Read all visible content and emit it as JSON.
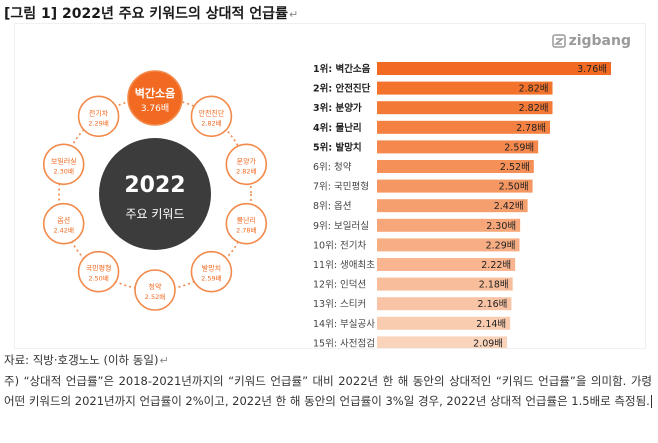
{
  "title": "[그림 1] 2022년 주요 키워드의 상대적 언급률",
  "return_mark": "↵",
  "logo": {
    "text": "zigbang",
    "icon": "zigbang-logo-icon",
    "color": "#9a9a9a"
  },
  "center": {
    "year": "2022",
    "label": "주요 키워드",
    "color": "#3c3c3c"
  },
  "colors": {
    "accent": "#f26a21",
    "ring": "#f28a4c",
    "bar_dark": "#f26a21",
    "bar_light": "#fad3bb"
  },
  "chart_data": {
    "type": "bar",
    "orientation": "horizontal",
    "unit": "배",
    "categories": [
      "1위: 벽간소음",
      "2위: 안전진단",
      "3위: 분양가",
      "4위: 물난리",
      "5위: 발망치",
      "6위: 청약",
      "7위: 국민평형",
      "8위: 옵션",
      "9위: 보일러실",
      "10위: 전기차",
      "11위: 생애최초",
      "12위: 인덕션",
      "13위: 스티커",
      "14위: 부실공사",
      "15위: 사전점검"
    ],
    "values": [
      3.76,
      2.82,
      2.82,
      2.78,
      2.59,
      2.52,
      2.5,
      2.42,
      2.3,
      2.29,
      2.22,
      2.18,
      2.16,
      2.14,
      2.09
    ],
    "value_labels": [
      "3.76배",
      "2.82배",
      "2.82배",
      "2.78배",
      "2.59배",
      "2.52배",
      "2.50배",
      "2.42배",
      "2.30배",
      "2.29배",
      "2.22배",
      "2.18배",
      "2.16배",
      "2.14배",
      "2.09배"
    ],
    "xlim": [
      0,
      3.76
    ],
    "bold_top": 5
  },
  "ring": [
    {
      "label": "벽간소음",
      "value": "3.76배",
      "highlight": true
    },
    {
      "label": "안전진단",
      "value": "2.82배",
      "highlight": false
    },
    {
      "label": "분양가",
      "value": "2.82배",
      "highlight": false
    },
    {
      "label": "물난리",
      "value": "2.78배",
      "highlight": false
    },
    {
      "label": "발망치",
      "value": "2.59배",
      "highlight": false
    },
    {
      "label": "청약",
      "value": "2.52배",
      "highlight": false
    },
    {
      "label": "국민평형",
      "value": "2.50배",
      "highlight": false
    },
    {
      "label": "옵션",
      "value": "2.42배",
      "highlight": false
    },
    {
      "label": "보일러실",
      "value": "2.30배",
      "highlight": false
    },
    {
      "label": "전기차",
      "value": "2.29배",
      "highlight": false
    }
  ],
  "source": "자료: 직방·호갱노노 (이하 동일)",
  "note": "주) “상대적 언급률”은 2018-2021년까지의 “키워드 언급률” 대비 2022년 한 해 동안의 상대적인 “키워드 언급률”을 의미함. 가령 어떤 키워드의 2021년까지 언급률이 2%이고, 2022년 한 해 동안의 언급률이 3%일 경우, 2022년 상대적 언급률은 1.5배로 측정됨."
}
